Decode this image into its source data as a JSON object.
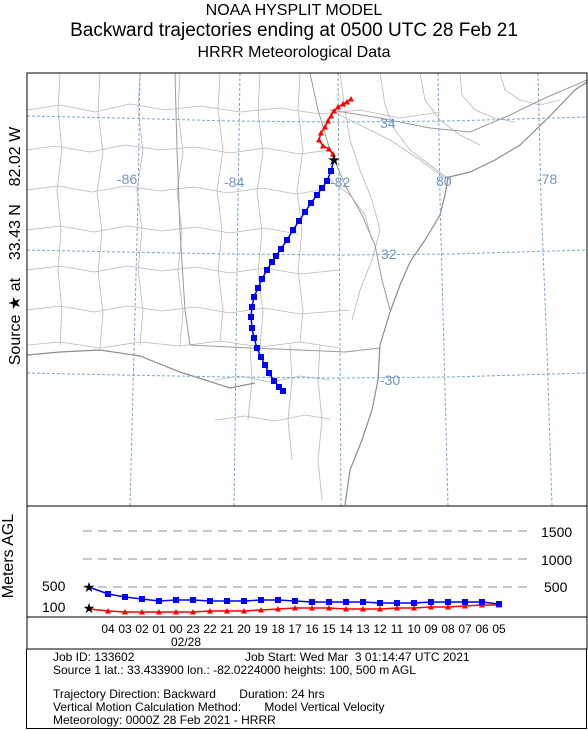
{
  "header": {
    "line1": "NOAA HYSPLIT MODEL",
    "line2": "Backward trajectories ending at 0500 UTC 28 Feb 21",
    "line3": "HRRR Meteorological Data"
  },
  "side_label": {
    "prefix": "Source",
    "rest": "at    33.43 N    82.02 W"
  },
  "map": {
    "lat_labels": [
      "34",
      "32",
      "-30"
    ],
    "lon_labels": [
      "-86",
      "-84",
      "-82",
      "80",
      "-78"
    ],
    "source": {
      "lat": 33.43,
      "lon": -82.02
    },
    "colors": {
      "traj_100m": "#ff0000",
      "traj_500m": "#0000ff",
      "grid": "#7aa6d6",
      "boundaries": "#b8b8b8"
    }
  },
  "vertical": {
    "ylabel": "Meters AGL",
    "left_ticks": [
      "500",
      "100"
    ],
    "right_ticks": [
      "1500",
      "1000",
      "500"
    ]
  },
  "time_axis": {
    "hours": [
      "04",
      "03",
      "02",
      "01",
      "00",
      "23",
      "22",
      "21",
      "20",
      "19",
      "18",
      "17",
      "16",
      "15",
      "14",
      "13",
      "12",
      "11",
      "10",
      "09",
      "08",
      "07",
      "06",
      "05"
    ],
    "date_label": "02/28"
  },
  "info": {
    "job_id": "Job ID: 133602",
    "job_start": "Job Start: Wed Mar  3 01:14:47 UTC 2021",
    "source": "Source 1 lat.: 33.433900  lon.: -82.0224000  heights: 100, 500 m AGL",
    "direction": "Trajectory Direction: Backward       Duration: 24 hrs",
    "vertical_motion": "Vertical Motion Calculation Method:       Model Vertical Velocity",
    "meteorology": "Meteorology: 0000Z 28 Feb 2021 - HRRR"
  }
}
